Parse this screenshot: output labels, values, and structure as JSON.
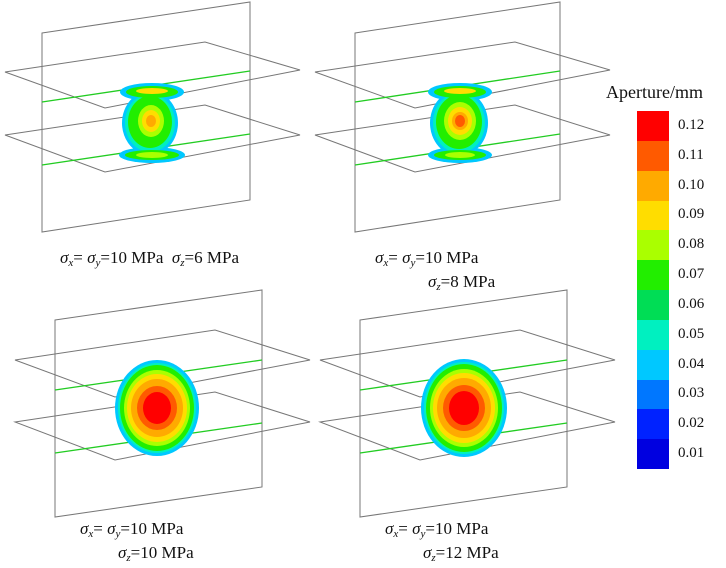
{
  "legend": {
    "title": "Aperture/mm",
    "entries": [
      {
        "label": "0.12",
        "color": "#ff0000"
      },
      {
        "label": "0.11",
        "color": "#ff5a00"
      },
      {
        "label": "0.10",
        "color": "#ffaa00"
      },
      {
        "label": "0.09",
        "color": "#ffdd00"
      },
      {
        "label": "0.08",
        "color": "#aaff00"
      },
      {
        "label": "0.07",
        "color": "#22ee00"
      },
      {
        "label": "0.06",
        "color": "#00dd55"
      },
      {
        "label": "0.05",
        "color": "#00f0c0"
      },
      {
        "label": "0.04",
        "color": "#00c8ff"
      },
      {
        "label": "0.03",
        "color": "#0077ff"
      },
      {
        "label": "0.02",
        "color": "#0022ff"
      },
      {
        "label": "0.01",
        "color": "#0000e0"
      }
    ]
  },
  "panels": [
    {
      "line1": {
        "sx": "σ",
        "sx_sub": "x",
        "eq": "= ",
        "sy": "σ",
        "sy_sub": "y",
        "sy_val": "=10 MPa"
      },
      "line2": {
        "sz": "σ",
        "sz_sub": "z",
        "sz_val": "=6 MPa"
      }
    },
    {
      "line1": {
        "sx": "σ",
        "sx_sub": "x",
        "eq": "= ",
        "sy": "σ",
        "sy_sub": "y",
        "sy_val": "=10 MPa"
      },
      "line2": {
        "sz": "σ",
        "sz_sub": "z",
        "sz_val": "=8 MPa"
      }
    },
    {
      "line1": {
        "sx": "σ",
        "sx_sub": "x",
        "eq": "= ",
        "sy": "σ",
        "sy_sub": "y",
        "sy_val": "=10 MPa"
      },
      "line2": {
        "sz": "σ",
        "sz_sub": "z",
        "sz_val": "=10 MPa"
      }
    },
    {
      "line1": {
        "sx": "σ",
        "sx_sub": "x",
        "eq": "= ",
        "sy": "σ",
        "sy_sub": "y",
        "sy_val": "=10 MPa"
      },
      "line2": {
        "sz": "σ",
        "sz_sub": "z",
        "sz_val": "=12 MPa"
      }
    }
  ]
}
